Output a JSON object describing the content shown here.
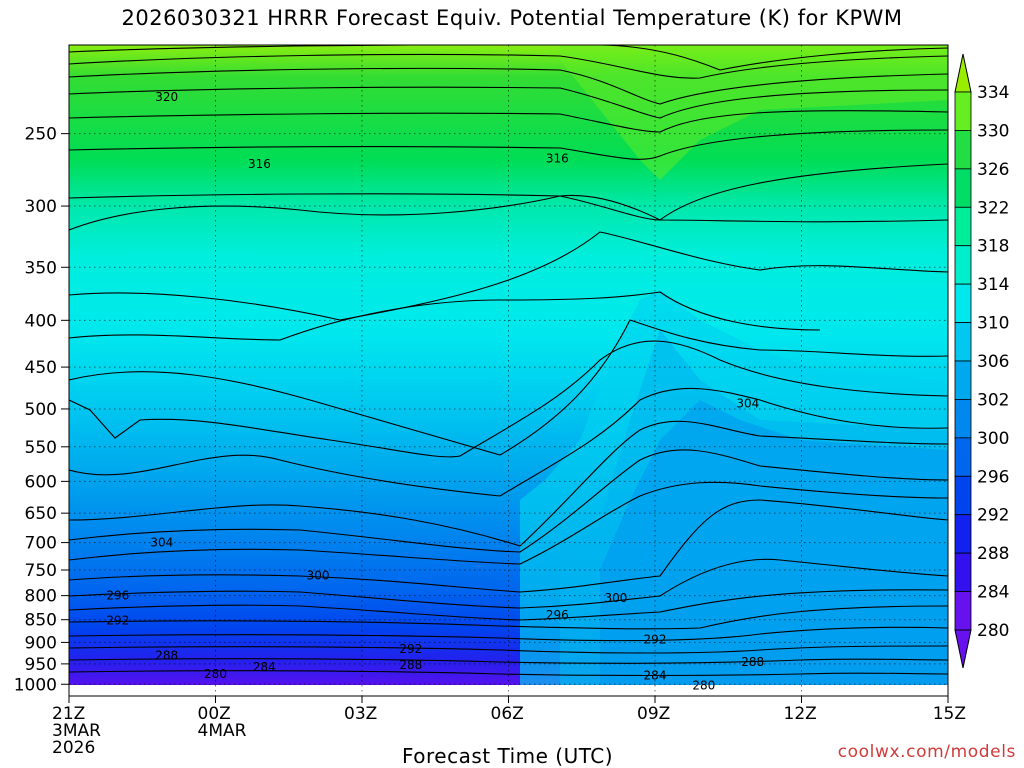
{
  "title": "2026030321 HRRR Forecast Equiv. Potential Temperature (K) for KPWM",
  "credit": "coolwx.com/models",
  "chart_data": {
    "type": "heatmap",
    "title": "2026030321 HRRR Forecast Equiv. Potential Temperature (K) for KPWM",
    "xlabel": "Forecast Time (UTC)",
    "ylabel": "",
    "x_range_hours": [
      0,
      18
    ],
    "x_ticks": [
      {
        "hour": 0,
        "lines": [
          "21Z",
          "3MAR",
          "2026"
        ]
      },
      {
        "hour": 3,
        "lines": [
          "00Z",
          "4MAR"
        ]
      },
      {
        "hour": 6,
        "lines": [
          "03Z"
        ]
      },
      {
        "hour": 9,
        "lines": [
          "06Z"
        ]
      },
      {
        "hour": 12,
        "lines": [
          "09Z"
        ]
      },
      {
        "hour": 15,
        "lines": [
          "12Z"
        ]
      },
      {
        "hour": 18,
        "lines": [
          "15Z"
        ]
      }
    ],
    "y_axis": "pressure (log scale, inverted)",
    "y_range": [
      1030,
      200
    ],
    "y_ticks": [
      250,
      300,
      350,
      400,
      450,
      500,
      550,
      600,
      650,
      700,
      750,
      800,
      850,
      900,
      950,
      1000
    ],
    "grid": "dotted",
    "colorbar": {
      "labels": [
        334,
        330,
        326,
        322,
        318,
        314,
        310,
        306,
        302,
        300,
        296,
        292,
        288,
        284,
        280
      ],
      "colors": [
        "#99ee00",
        "#66ee22",
        "#22dd44",
        "#00dd66",
        "#00ee99",
        "#00eecc",
        "#00e8ee",
        "#00c8f0",
        "#00a8ee",
        "#0088ee",
        "#0066ee",
        "#0044ee",
        "#1122ee",
        "#3311ee",
        "#6611ee"
      ]
    },
    "contour_labels": [
      {
        "value": "320",
        "hour": 2.0,
        "p": 228
      },
      {
        "value": "316",
        "hour": 3.9,
        "p": 270
      },
      {
        "value": "316",
        "hour": 10.0,
        "p": 266
      },
      {
        "value": "304",
        "hour": 1.9,
        "p": 700
      },
      {
        "value": "304",
        "hour": 13.9,
        "p": 493
      },
      {
        "value": "300",
        "hour": 5.1,
        "p": 760
      },
      {
        "value": "300",
        "hour": 11.2,
        "p": 805
      },
      {
        "value": "296",
        "hour": 1.0,
        "p": 800
      },
      {
        "value": "296",
        "hour": 10.0,
        "p": 840
      },
      {
        "value": "292",
        "hour": 1.0,
        "p": 852
      },
      {
        "value": "292",
        "hour": 7.0,
        "p": 915
      },
      {
        "value": "292",
        "hour": 12.0,
        "p": 893
      },
      {
        "value": "288",
        "hour": 2.0,
        "p": 930
      },
      {
        "value": "288",
        "hour": 7.0,
        "p": 953
      },
      {
        "value": "288",
        "hour": 14.0,
        "p": 945
      },
      {
        "value": "284",
        "hour": 4.0,
        "p": 958
      },
      {
        "value": "284",
        "hour": 12.0,
        "p": 978
      },
      {
        "value": "280",
        "hour": 3.0,
        "p": 975
      },
      {
        "value": "280",
        "hour": 13.0,
        "p": 1003
      }
    ]
  }
}
